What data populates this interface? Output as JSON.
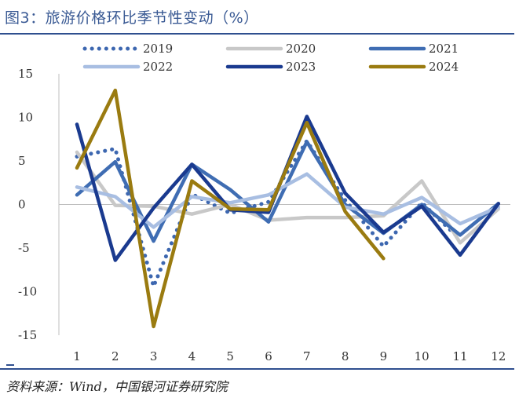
{
  "title": "图3：旅游价格环比季节性变动（%）",
  "source": "资料来源：Wind，中国银河证券研究院",
  "chart_data": {
    "type": "line",
    "title": "旅游价格环比季节性变动（%）",
    "xlabel": "",
    "ylabel": "",
    "categories": [
      "1",
      "2",
      "3",
      "4",
      "5",
      "6",
      "7",
      "8",
      "9",
      "10",
      "11",
      "12"
    ],
    "y_ticks": [
      "15",
      "10",
      "5",
      "0",
      "-5",
      "-10",
      "-15"
    ],
    "ylim": [
      -15,
      15
    ],
    "grid": false,
    "legend_position": "top",
    "series": [
      {
        "name": "2019",
        "color": "#3d67b0",
        "dash": "dotted",
        "values": [
          5.5,
          6.4,
          -9.4,
          1.2,
          -1.0,
          0.3,
          7.3,
          0.5,
          -4.8,
          0.2,
          -4.0,
          null
        ]
      },
      {
        "name": "2020",
        "color": "#c8c8c8",
        "dash": "solid",
        "values": [
          6.0,
          -0.1,
          -0.2,
          -1.1,
          0.0,
          -1.8,
          -1.5,
          -1.5,
          -1.3,
          2.7,
          -4.4,
          -0.5
        ]
      },
      {
        "name": "2021",
        "color": "#3f6db3",
        "dash": "solid",
        "values": [
          1.1,
          4.9,
          -4.2,
          4.6,
          1.7,
          -2.0,
          7.2,
          0.0,
          -3.3,
          0.0,
          -3.5,
          0.1
        ]
      },
      {
        "name": "2022",
        "color": "#a8bee2",
        "dash": "solid",
        "values": [
          2.0,
          0.9,
          -2.6,
          0.9,
          0.2,
          1.1,
          3.5,
          -0.3,
          -1.1,
          0.8,
          -2.2,
          -0.3
        ]
      },
      {
        "name": "2023",
        "color": "#1a3a8f",
        "dash": "solid",
        "values": [
          9.2,
          -6.4,
          -0.4,
          4.6,
          -0.6,
          -0.9,
          10.1,
          1.3,
          -3.2,
          -0.2,
          -5.8,
          0.1
        ]
      },
      {
        "name": "2024",
        "color": "#9a7b10",
        "dash": "solid",
        "values": [
          4.2,
          13.1,
          -14.0,
          2.7,
          -0.5,
          -0.6,
          9.4,
          -0.8,
          -6.2,
          null,
          null,
          null
        ]
      }
    ]
  }
}
